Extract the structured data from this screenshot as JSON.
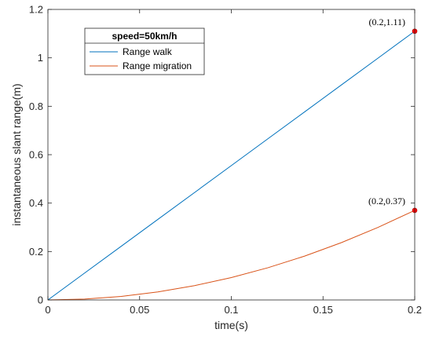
{
  "chart_data": {
    "type": "line",
    "xlabel": "time(s)",
    "ylabel": "instantaneous slant range(m)",
    "xlim": [
      0,
      0.2
    ],
    "ylim": [
      0,
      1.2
    ],
    "xticks": [
      0,
      0.05,
      0.1,
      0.15,
      0.2
    ],
    "yticks": [
      0,
      0.2,
      0.4,
      0.6,
      0.8,
      1,
      1.2
    ],
    "xtick_labels": [
      "0",
      "0.05",
      "0.1",
      "0.15",
      "0.2"
    ],
    "ytick_labels": [
      "0",
      "0.2",
      "0.4",
      "0.6",
      "0.8",
      "1",
      "1.2"
    ],
    "grid": false,
    "legend": {
      "title": "speed=50km/h",
      "placement": "top-left"
    },
    "series": [
      {
        "name": "Range walk",
        "color": "#0072BD",
        "x": [
          0,
          0.02,
          0.04,
          0.06,
          0.08,
          0.1,
          0.12,
          0.14,
          0.16,
          0.18,
          0.2
        ],
        "y": [
          0,
          0.111,
          0.222,
          0.333,
          0.444,
          0.555,
          0.666,
          0.777,
          0.888,
          0.999,
          1.11
        ]
      },
      {
        "name": "Range migration",
        "color": "#D95319",
        "x": [
          0,
          0.02,
          0.04,
          0.06,
          0.08,
          0.1,
          0.12,
          0.14,
          0.16,
          0.18,
          0.2
        ],
        "y": [
          0,
          0.0037,
          0.0148,
          0.0333,
          0.0592,
          0.0925,
          0.1332,
          0.1813,
          0.2368,
          0.2997,
          0.37
        ]
      }
    ],
    "annotations": [
      {
        "x": 0.2,
        "y": 1.11,
        "text": "(0.2,1.11)",
        "marker_color": "#FF0000"
      },
      {
        "x": 0.2,
        "y": 0.37,
        "text": "(0.2,0.37)",
        "marker_color": "#FF0000"
      }
    ]
  }
}
